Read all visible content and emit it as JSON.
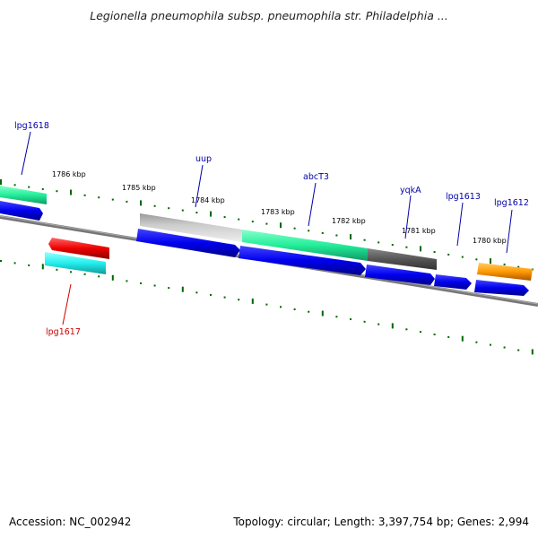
{
  "title": "Legionella pneumophila subsp. pneumophila str. Philadelphia ...",
  "footer": {
    "accession": "Accession: NC_002942",
    "summary": "Topology: circular; Length: 3,397,754 bp; Genes: 2,994"
  },
  "kbp_ticks": [
    "1786 kbp",
    "1785 kbp",
    "1784 kbp",
    "1783 kbp",
    "1782 kbp",
    "1781 kbp",
    "1780 kbp"
  ],
  "gene_labels": [
    "lpg1618",
    "uup",
    "abcT3",
    "yqkA",
    "lpg1613",
    "lpg1612",
    "lpg1617"
  ],
  "colors": {
    "blue": "#0000ee",
    "red": "#ee0000",
    "green": "#22ee99",
    "cyan": "#22eeee",
    "gray": "#bbbbbb",
    "darkgray": "#666666",
    "orange": "#ff9900",
    "tick": "#006600",
    "label_blue": "#0000aa",
    "label_red": "#cc0000"
  }
}
